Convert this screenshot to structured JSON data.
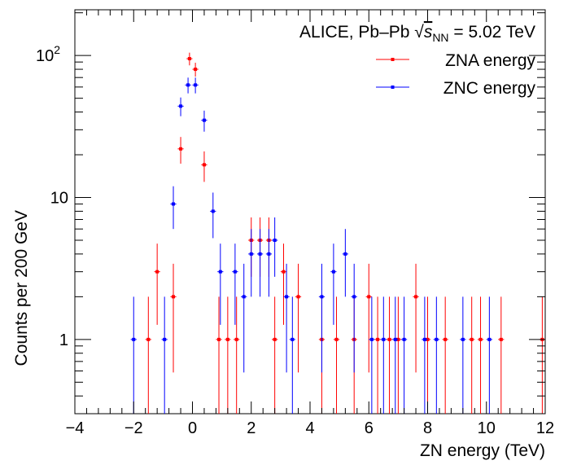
{
  "chart_data": {
    "type": "scatter",
    "title": "",
    "annotation": {
      "prefix": "ALICE, Pb–Pb",
      "sqrt_var": "s",
      "sqrt_sub": "NN",
      "suffix": "= 5.02 TeV"
    },
    "xlabel": "ZN energy (TeV)",
    "ylabel": "Counts per 200 GeV",
    "xlim": [
      -4,
      12
    ],
    "ylim": [
      0.3,
      210
    ],
    "y_scale": "log",
    "grid": false,
    "legend_position": "top-right",
    "x_ticks": [
      "−4",
      "−2",
      "0",
      "2",
      "4",
      "6",
      "8",
      "10",
      "12"
    ],
    "x_tick_values": [
      -4,
      -2,
      0,
      2,
      4,
      6,
      8,
      10,
      12
    ],
    "y_ticks": [
      {
        "value": 1,
        "base": "1",
        "exp": ""
      },
      {
        "value": 10,
        "base": "10",
        "exp": ""
      },
      {
        "value": 100,
        "base": "10",
        "exp": "2"
      }
    ],
    "series": [
      {
        "name": "ZNA energy",
        "color": "#ff0000",
        "bin_half_width": 0.1,
        "points": [
          {
            "x": -1.5,
            "y": 1
          },
          {
            "x": -1.2,
            "y": 3
          },
          {
            "x": -0.65,
            "y": 2
          },
          {
            "x": -0.4,
            "y": 22
          },
          {
            "x": -0.1,
            "y": 95
          },
          {
            "x": 0.1,
            "y": 80
          },
          {
            "x": 0.4,
            "y": 17
          },
          {
            "x": 0.9,
            "y": 1
          },
          {
            "x": 1.2,
            "y": 1
          },
          {
            "x": 1.5,
            "y": 1
          },
          {
            "x": 2.0,
            "y": 5
          },
          {
            "x": 2.3,
            "y": 5
          },
          {
            "x": 2.6,
            "y": 5
          },
          {
            "x": 2.8,
            "y": 1
          },
          {
            "x": 3.1,
            "y": 3
          },
          {
            "x": 3.6,
            "y": 2
          },
          {
            "x": 4.4,
            "y": 1
          },
          {
            "x": 4.9,
            "y": 1
          },
          {
            "x": 5.5,
            "y": 1
          },
          {
            "x": 6.0,
            "y": 2
          },
          {
            "x": 6.3,
            "y": 1
          },
          {
            "x": 6.7,
            "y": 1
          },
          {
            "x": 7.0,
            "y": 1
          },
          {
            "x": 7.6,
            "y": 2
          },
          {
            "x": 8.0,
            "y": 1
          },
          {
            "x": 8.6,
            "y": 1
          },
          {
            "x": 9.5,
            "y": 1
          },
          {
            "x": 9.8,
            "y": 1
          },
          {
            "x": 10.5,
            "y": 1
          },
          {
            "x": 11.9,
            "y": 1
          }
        ]
      },
      {
        "name": "ZNC energy",
        "color": "#0000ff",
        "bin_half_width": 0.1,
        "points": [
          {
            "x": -2.0,
            "y": 1
          },
          {
            "x": -0.95,
            "y": 1
          },
          {
            "x": -0.65,
            "y": 9
          },
          {
            "x": -0.4,
            "y": 44
          },
          {
            "x": -0.15,
            "y": 62
          },
          {
            "x": 0.1,
            "y": 62
          },
          {
            "x": 0.4,
            "y": 35
          },
          {
            "x": 0.7,
            "y": 8
          },
          {
            "x": 0.95,
            "y": 3
          },
          {
            "x": 1.45,
            "y": 3
          },
          {
            "x": 1.75,
            "y": 2
          },
          {
            "x": 2.0,
            "y": 4
          },
          {
            "x": 2.3,
            "y": 4
          },
          {
            "x": 2.6,
            "y": 4
          },
          {
            "x": 2.8,
            "y": 5
          },
          {
            "x": 3.2,
            "y": 2
          },
          {
            "x": 3.4,
            "y": 1
          },
          {
            "x": 4.4,
            "y": 2
          },
          {
            "x": 4.8,
            "y": 3
          },
          {
            "x": 5.2,
            "y": 4
          },
          {
            "x": 5.5,
            "y": 2
          },
          {
            "x": 6.1,
            "y": 1
          },
          {
            "x": 6.5,
            "y": 1
          },
          {
            "x": 6.9,
            "y": 1
          },
          {
            "x": 7.2,
            "y": 1
          },
          {
            "x": 7.9,
            "y": 1
          },
          {
            "x": 8.3,
            "y": 1
          },
          {
            "x": 9.2,
            "y": 1
          },
          {
            "x": 10.1,
            "y": 1
          }
        ]
      }
    ]
  }
}
